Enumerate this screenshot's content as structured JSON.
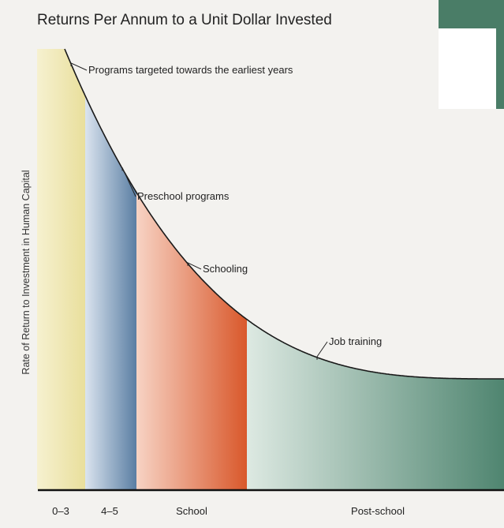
{
  "colors": {
    "background": "#f3f2ef",
    "plot_background": "#ffffff",
    "corner_block": "#4a7d67",
    "curve": "#1a1a1a",
    "axis": "#111111"
  },
  "chart_data": {
    "type": "area",
    "title": "Returns Per Annum to a Unit Dollar Invested",
    "ylabel": "Rate of Return to Investment in Human Capital",
    "xlabel": "",
    "grid": false,
    "legend": "none",
    "categories": [
      "0–3",
      "4–5",
      "School",
      "Post-school"
    ],
    "stage_colors": [
      {
        "light": "#f6f1d0",
        "dark": "#e9df9c"
      },
      {
        "light": "#dbe4ef",
        "dark": "#5a7ea3"
      },
      {
        "light": "#f7d3c4",
        "dark": "#d9582b"
      },
      {
        "light": "#dde9e2",
        "dark": "#4f8570"
      }
    ],
    "annotations": [
      {
        "text": "Programs targeted towards the earliest years"
      },
      {
        "text": "Preschool programs"
      },
      {
        "text": "Schooling"
      },
      {
        "text": "Job training"
      }
    ]
  }
}
